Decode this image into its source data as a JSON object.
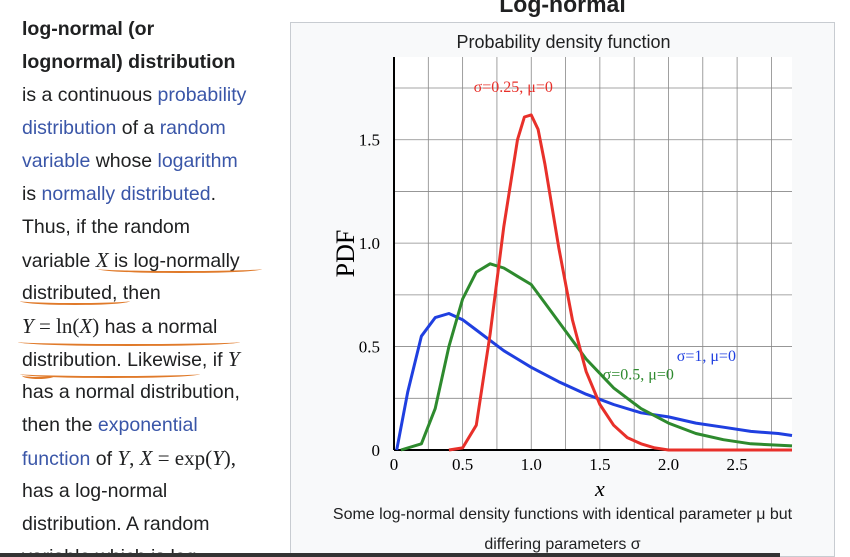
{
  "article": {
    "lines": [
      {
        "parts": [
          {
            "t": "log-normal (or",
            "c": "bold"
          }
        ]
      },
      {
        "parts": [
          {
            "t": "lognormal) distribution",
            "c": "bold"
          }
        ]
      },
      {
        "parts": [
          {
            "t": "is a continuous ",
            "c": ""
          },
          {
            "t": "probability",
            "c": "link"
          }
        ]
      },
      {
        "parts": [
          {
            "t": "distribution",
            "c": "link"
          },
          {
            "t": " of a ",
            "c": ""
          },
          {
            "t": "random",
            "c": "link"
          }
        ]
      },
      {
        "parts": [
          {
            "t": "variable",
            "c": "link"
          },
          {
            "t": " whose ",
            "c": ""
          },
          {
            "t": "logarithm",
            "c": "link"
          }
        ]
      },
      {
        "parts": [
          {
            "t": "is ",
            "c": ""
          },
          {
            "t": "normally distributed",
            "c": "link"
          },
          {
            "t": ".",
            "c": ""
          }
        ]
      },
      {
        "parts": [
          {
            "t": "Thus, if the random",
            "c": ""
          }
        ]
      },
      {
        "parts": [
          {
            "t": "variable ",
            "c": ""
          },
          {
            "t": "X",
            "c": "math"
          },
          {
            "t": " is log-normally",
            "c": ""
          }
        ]
      },
      {
        "parts": [
          {
            "t": "distributed, then",
            "c": ""
          }
        ]
      },
      {
        "parts": [
          {
            "t": "Y",
            "c": "math"
          },
          {
            "t": " = ",
            "c": "mrom"
          },
          {
            "t": "ln(",
            "c": "mrom"
          },
          {
            "t": "X",
            "c": "math"
          },
          {
            "t": ")",
            "c": "mrom"
          },
          {
            "t": " has a normal",
            "c": ""
          }
        ]
      },
      {
        "parts": [
          {
            "t": "distribution. Likewise, if ",
            "c": ""
          },
          {
            "t": "Y",
            "c": "math"
          }
        ]
      },
      {
        "parts": [
          {
            "t": "has a normal distribution,",
            "c": ""
          }
        ]
      },
      {
        "parts": [
          {
            "t": "then the ",
            "c": ""
          },
          {
            "t": "exponential",
            "c": "link"
          }
        ]
      },
      {
        "parts": [
          {
            "t": "function",
            "c": "link"
          },
          {
            "t": " of ",
            "c": ""
          },
          {
            "t": "Y",
            "c": "math"
          },
          {
            "t": ", ",
            "c": "mrom"
          },
          {
            "t": "X",
            "c": "math"
          },
          {
            "t": " = exp(",
            "c": "mrom"
          },
          {
            "t": "Y",
            "c": "math"
          },
          {
            "t": "),",
            "c": "mrom"
          }
        ]
      },
      {
        "parts": [
          {
            "t": "has a log-normal",
            "c": ""
          }
        ]
      },
      {
        "parts": [
          {
            "t": "distribution. A random",
            "c": ""
          }
        ]
      },
      {
        "parts": [
          {
            "t": "variable which is log-",
            "c": ""
          }
        ]
      }
    ]
  },
  "infobox": {
    "title": "Log-normal",
    "subtitle": "Probability density function",
    "caption_line1": "Some log-normal density functions with identical parameter μ but",
    "caption_line2": "differing parameters σ"
  },
  "chart_data": {
    "type": "line",
    "title": "Probability density function",
    "xlabel": "x",
    "ylabel": "PDF",
    "xlim": [
      0,
      2.9
    ],
    "ylim": [
      0,
      1.9
    ],
    "x_ticks": [
      0,
      0.5,
      1.0,
      1.5,
      2.0,
      2.5
    ],
    "x_tick_labels": [
      "0",
      "0.5",
      "1.0",
      "1.5",
      "2.0",
      "2.5"
    ],
    "y_ticks": [
      0,
      0.5,
      1.0,
      1.5
    ],
    "y_tick_labels": [
      "0",
      "0.5",
      "1.0",
      "1.5"
    ],
    "grid": true,
    "series": [
      {
        "name": "σ=1, μ=0",
        "color": "#1f3fe0",
        "sigma": 1,
        "mu": 0,
        "x": [
          0.02,
          0.1,
          0.2,
          0.3,
          0.4,
          0.5,
          0.6,
          0.7,
          0.8,
          0.9,
          1.0,
          1.2,
          1.4,
          1.6,
          1.8,
          2.0,
          2.2,
          2.4,
          2.6,
          2.8,
          2.9
        ],
        "y": [
          0.0,
          0.28,
          0.55,
          0.64,
          0.66,
          0.63,
          0.58,
          0.53,
          0.48,
          0.44,
          0.4,
          0.33,
          0.27,
          0.22,
          0.18,
          0.16,
          0.13,
          0.11,
          0.09,
          0.08,
          0.07
        ]
      },
      {
        "name": "σ=0.5, μ=0",
        "color": "#2e8a2e",
        "sigma": 0.5,
        "mu": 0,
        "x": [
          0.05,
          0.2,
          0.3,
          0.4,
          0.5,
          0.6,
          0.7,
          0.8,
          0.9,
          1.0,
          1.1,
          1.2,
          1.4,
          1.6,
          1.8,
          2.0,
          2.2,
          2.4,
          2.6,
          2.9
        ],
        "y": [
          0.0,
          0.03,
          0.2,
          0.5,
          0.73,
          0.86,
          0.9,
          0.88,
          0.84,
          0.8,
          0.71,
          0.62,
          0.44,
          0.3,
          0.2,
          0.13,
          0.08,
          0.05,
          0.03,
          0.02
        ]
      },
      {
        "name": "σ=0.25, μ=0",
        "color": "#e8302a",
        "sigma": 0.25,
        "mu": 0,
        "x": [
          0.4,
          0.5,
          0.6,
          0.7,
          0.8,
          0.9,
          0.95,
          1.0,
          1.05,
          1.1,
          1.2,
          1.3,
          1.4,
          1.5,
          1.6,
          1.7,
          1.8,
          1.9,
          2.0,
          2.2,
          2.5,
          2.9
        ],
        "y": [
          0.0,
          0.01,
          0.12,
          0.56,
          1.08,
          1.5,
          1.61,
          1.62,
          1.55,
          1.38,
          0.98,
          0.63,
          0.38,
          0.22,
          0.12,
          0.06,
          0.03,
          0.01,
          0.0,
          0.0,
          0.0,
          0.0
        ]
      }
    ],
    "annotations": [
      {
        "text": "σ=0.25, μ=0",
        "series": 2
      },
      {
        "text": "σ=0.5, μ=0",
        "series": 1
      },
      {
        "text": "σ=1, μ=0",
        "series": 0
      }
    ]
  }
}
